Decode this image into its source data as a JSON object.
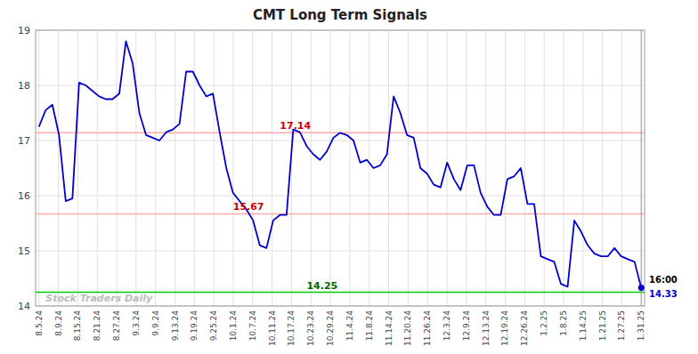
{
  "chart_data": {
    "type": "line",
    "title": "CMT Long Term Signals",
    "color": "#0000cc",
    "values": [
      17.25,
      17.55,
      17.65,
      17.1,
      15.9,
      15.95,
      18.05,
      18.0,
      17.9,
      17.8,
      17.75,
      17.75,
      17.85,
      18.8,
      18.4,
      17.5,
      17.1,
      17.05,
      17.0,
      17.15,
      17.2,
      17.3,
      18.25,
      18.25,
      18.0,
      17.8,
      17.85,
      17.15,
      16.5,
      16.05,
      15.9,
      15.75,
      15.55,
      15.1,
      15.05,
      15.55,
      15.65,
      15.65,
      17.2,
      17.15,
      16.9,
      16.75,
      16.65,
      16.8,
      17.05,
      17.14,
      17.1,
      17.0,
      16.6,
      16.65,
      16.5,
      16.55,
      16.75,
      17.8,
      17.5,
      17.1,
      17.05,
      16.5,
      16.4,
      16.2,
      16.15,
      16.6,
      16.3,
      16.1,
      16.55,
      16.55,
      16.05,
      15.8,
      15.65,
      15.65,
      16.3,
      16.35,
      16.5,
      15.85,
      15.85,
      14.9,
      14.85,
      14.8,
      14.4,
      14.35,
      15.55,
      15.35,
      15.1,
      14.95,
      14.9,
      14.9,
      15.05,
      14.9,
      14.85,
      14.8,
      14.33
    ],
    "xlim": [
      -0.5,
      90.5
    ],
    "xticks": [
      {
        "value": 0,
        "label": "8.5.24"
      },
      {
        "value": 2.903226,
        "label": "8.9.24"
      },
      {
        "value": 5.806452,
        "label": "8.15.24"
      },
      {
        "value": 8.709677,
        "label": "8.21.24"
      },
      {
        "value": 11.612903,
        "label": "8.27.24"
      },
      {
        "value": 14.516129,
        "label": "9.3.24"
      },
      {
        "value": 17.419355,
        "label": "9.9.24"
      },
      {
        "value": 20.322581,
        "label": "9.13.24"
      },
      {
        "value": 23.225806,
        "label": "9.19.24"
      },
      {
        "value": 26.129032,
        "label": "9.25.24"
      },
      {
        "value": 29.032258,
        "label": "10.1.24"
      },
      {
        "value": 31.935484,
        "label": "10.7.24"
      },
      {
        "value": 34.83871,
        "label": "10.11.24"
      },
      {
        "value": 37.741935,
        "label": "10.17.24"
      },
      {
        "value": 40.645161,
        "label": "10.23.24"
      },
      {
        "value": 43.548387,
        "label": "10.29.24"
      },
      {
        "value": 46.451613,
        "label": "11.4.24"
      },
      {
        "value": 49.354839,
        "label": "11.8.24"
      },
      {
        "value": 52.258065,
        "label": "11.14.24"
      },
      {
        "value": 55.16129,
        "label": "11.20.24"
      },
      {
        "value": 58.064516,
        "label": "11.26.24"
      },
      {
        "value": 60.967742,
        "label": "12.3.24"
      },
      {
        "value": 63.870968,
        "label": "12.9.24"
      },
      {
        "value": 66.774194,
        "label": "12.13.24"
      },
      {
        "value": 69.677419,
        "label": "12.19.24"
      },
      {
        "value": 72.580645,
        "label": "12.26.24"
      },
      {
        "value": 75.483871,
        "label": "1.2.25"
      },
      {
        "value": 78.387097,
        "label": "1.8.25"
      },
      {
        "value": 81.290323,
        "label": "1.14.25"
      },
      {
        "value": 84.193548,
        "label": "1.21.25"
      },
      {
        "value": 87.096774,
        "label": "1.27.25"
      },
      {
        "value": 90,
        "label": "1.31.25"
      }
    ],
    "ylim": [
      14.0,
      19.0
    ],
    "yticks": [
      14,
      15,
      16,
      17,
      18,
      19
    ],
    "grid": true,
    "annotations": [
      {
        "text": "17.14",
        "y": 17.14,
        "x": 36,
        "color": "#ffaaaa",
        "text_color": "#cc0000"
      },
      {
        "text": "15.67",
        "y": 15.67,
        "x": 29,
        "color": "#ffaaaa",
        "text_color": "#cc0000"
      },
      {
        "text": "14.25",
        "y": 14.25,
        "x": 40,
        "color": "#00cc00",
        "text_color": "#006600"
      }
    ],
    "last_point": {
      "time_label": "16:00",
      "value_label": "14.33",
      "color": "#0000cc"
    },
    "watermark": {
      "text": "Stock Traders Daily",
      "x": 1,
      "y": 14.08,
      "color": "#bbbbbb"
    }
  }
}
